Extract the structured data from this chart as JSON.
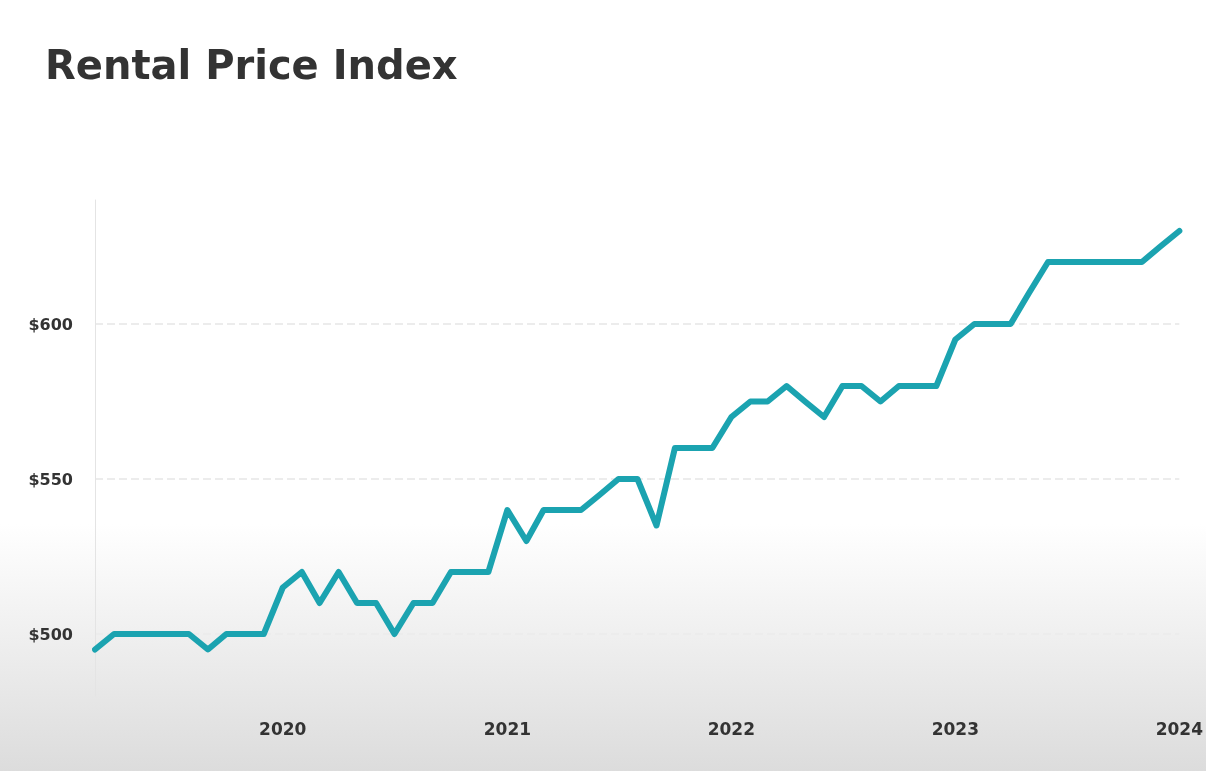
{
  "chart_data": {
    "type": "line",
    "title": "Rental Price Index",
    "x": [
      "2019-03",
      "2019-04",
      "2019-05",
      "2019-06",
      "2019-07",
      "2019-08",
      "2019-09",
      "2019-10",
      "2019-11",
      "2019-12",
      "2020-01",
      "2020-02",
      "2020-03",
      "2020-04",
      "2020-05",
      "2020-06",
      "2020-07",
      "2020-08",
      "2020-09",
      "2020-10",
      "2020-11",
      "2020-12",
      "2021-01",
      "2021-02",
      "2021-03",
      "2021-04",
      "2021-05",
      "2021-06",
      "2021-07",
      "2021-08",
      "2021-09",
      "2021-10",
      "2021-11",
      "2021-12",
      "2022-01",
      "2022-02",
      "2022-03",
      "2022-04",
      "2022-05",
      "2022-06",
      "2022-07",
      "2022-08",
      "2022-09",
      "2022-10",
      "2022-11",
      "2022-12",
      "2023-01",
      "2023-02",
      "2023-03",
      "2023-04",
      "2023-05",
      "2023-06",
      "2023-07",
      "2023-08",
      "2023-09",
      "2023-10",
      "2023-11",
      "2023-12",
      "2024-01"
    ],
    "series": [
      {
        "color": "#1ba3b0",
        "values": [
          495,
          500,
          500,
          500,
          500,
          500,
          495,
          500,
          500,
          500,
          515,
          520,
          510,
          520,
          510,
          510,
          500,
          510,
          510,
          520,
          520,
          520,
          540,
          530,
          540,
          540,
          540,
          545,
          550,
          550,
          535,
          560,
          560,
          560,
          570,
          575,
          575,
          580,
          575,
          570,
          580,
          580,
          575,
          580,
          580,
          580,
          595,
          600,
          600,
          600,
          610,
          620,
          620,
          620,
          620,
          620,
          620,
          625,
          630
        ]
      }
    ],
    "xlim": [
      "2019-03",
      "2024-01"
    ],
    "xticks": [
      {
        "value": "2020",
        "label": "2020"
      },
      {
        "value": "2021",
        "label": "2021"
      },
      {
        "value": "2022",
        "label": "2022"
      },
      {
        "value": "2023",
        "label": "2023"
      },
      {
        "value": "2024",
        "label": "2024"
      }
    ],
    "ylim": [
      480,
      640
    ],
    "yticks": [
      {
        "value": 500,
        "label": "$500"
      },
      {
        "value": 550,
        "label": "$550"
      },
      {
        "value": 600,
        "label": "$600"
      }
    ],
    "grid": "y",
    "marker": "none",
    "line_style": "solid"
  }
}
